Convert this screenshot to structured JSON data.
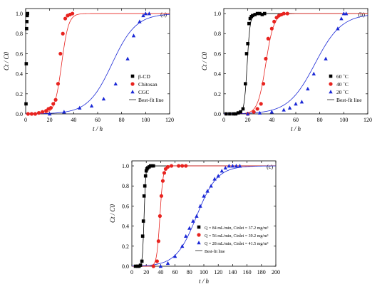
{
  "chart_data": [
    {
      "type": "scatter",
      "panel_label": "(a)",
      "xlabel": "t / h",
      "ylabel": "Ct / C0",
      "xlim": [
        0,
        120
      ],
      "ylim": [
        0,
        1.05
      ],
      "xticks": [
        0,
        20,
        40,
        60,
        80,
        100,
        120
      ],
      "yticks": [
        0.0,
        0.2,
        0.4,
        0.6,
        0.8,
        1.0
      ],
      "legend_position": "bottom-right",
      "series": [
        {
          "name": "β-CD",
          "marker": "square",
          "color": "#000000",
          "x": [
            0.3,
            0.5,
            0.8,
            1.0,
            1.3,
            1.6
          ],
          "y": [
            0.1,
            0.5,
            0.85,
            0.92,
            0.98,
            1.0
          ]
        },
        {
          "name": "Chitosan",
          "marker": "circle",
          "color": "#e8231f",
          "x": [
            2,
            5,
            8,
            11,
            14,
            17,
            19,
            21,
            23,
            25,
            27,
            29,
            31,
            33,
            35,
            37,
            39
          ],
          "y": [
            0.0,
            0.0,
            0.0,
            0.01,
            0.02,
            0.03,
            0.05,
            0.06,
            0.1,
            0.14,
            0.3,
            0.6,
            0.8,
            0.95,
            0.98,
            0.99,
            1.0
          ]
        },
        {
          "name": "CGC",
          "marker": "triangle",
          "color": "#1a28d6",
          "x": [
            20,
            32,
            45,
            55,
            65,
            75,
            85,
            90,
            95,
            98,
            100,
            103
          ],
          "y": [
            0.0,
            0.02,
            0.06,
            0.08,
            0.15,
            0.3,
            0.55,
            0.78,
            0.92,
            0.98,
            1.0,
            1.0
          ]
        }
      ],
      "fit_lines": [
        {
          "color": "#e8231f",
          "model": "thomas",
          "t50": 30,
          "k": 0.35
        },
        {
          "color": "#1a28d6",
          "model": "thomas",
          "t50": 72,
          "k": 0.1
        }
      ],
      "fit_legend": "Best-fit line"
    },
    {
      "type": "scatter",
      "panel_label": "(b)",
      "xlabel": "t / h",
      "ylabel": "Ct / C0",
      "xlim": [
        0,
        120
      ],
      "ylim": [
        0,
        1.05
      ],
      "xticks": [
        0,
        20,
        40,
        60,
        80,
        100,
        120
      ],
      "yticks": [
        0.0,
        0.2,
        0.4,
        0.6,
        0.8,
        1.0
      ],
      "legend_position": "bottom-right",
      "series": [
        {
          "name": "60 ˚C",
          "marker": "square",
          "color": "#000000",
          "x": [
            2,
            5,
            8,
            10,
            12,
            14,
            16,
            18,
            19,
            20,
            21,
            22,
            23,
            24,
            26,
            28,
            30,
            32,
            34
          ],
          "y": [
            0.0,
            0.0,
            0.0,
            0.0,
            0.01,
            0.02,
            0.05,
            0.3,
            0.6,
            0.7,
            0.9,
            0.95,
            0.97,
            0.98,
            0.99,
            1.0,
            1.0,
            0.99,
            1.0
          ]
        },
        {
          "name": "40 ˚C",
          "marker": "circle",
          "color": "#e8231f",
          "x": [
            20,
            25,
            28,
            31,
            33,
            35,
            37,
            40,
            42,
            44,
            46,
            48,
            50,
            53
          ],
          "y": [
            0.0,
            0.02,
            0.05,
            0.1,
            0.3,
            0.55,
            0.75,
            0.85,
            0.92,
            0.96,
            0.98,
            0.99,
            1.0,
            1.0
          ]
        },
        {
          "name": "20 ˚C",
          "marker": "triangle",
          "color": "#1a28d6",
          "x": [
            20,
            30,
            40,
            50,
            55,
            60,
            65,
            70,
            75,
            85,
            95,
            98,
            100,
            102
          ],
          "y": [
            0.0,
            0.01,
            0.02,
            0.04,
            0.06,
            0.1,
            0.12,
            0.25,
            0.4,
            0.55,
            0.85,
            0.95,
            1.0,
            1.0
          ]
        }
      ],
      "fit_lines": [
        {
          "color": "#000000",
          "model": "thomas",
          "t50": 19.5,
          "k": 0.8
        },
        {
          "color": "#e8231f",
          "model": "thomas",
          "t50": 35,
          "k": 0.3
        },
        {
          "color": "#1a28d6",
          "model": "thomas",
          "t50": 76,
          "k": 0.09
        }
      ],
      "fit_legend": "Best-fit line"
    },
    {
      "type": "scatter",
      "panel_label": "(c)",
      "xlabel": "t / h",
      "ylabel": "Ct / C0",
      "xlim": [
        0,
        200
      ],
      "ylim": [
        0,
        1.05
      ],
      "xticks": [
        0,
        20,
        40,
        60,
        80,
        100,
        120,
        140,
        160,
        180,
        200
      ],
      "yticks": [
        0.0,
        0.2,
        0.4,
        0.6,
        0.8,
        1.0
      ],
      "legend_position": "bottom-right",
      "series": [
        {
          "name": "Q = 84 mL/min, Cinlet = 37.2 mg/m³",
          "marker": "square",
          "color": "#000000",
          "x": [
            5,
            8,
            10,
            12,
            14,
            15,
            16,
            17,
            18,
            19,
            20,
            21,
            22,
            24,
            26,
            28,
            30
          ],
          "y": [
            0.0,
            0.0,
            0.0,
            0.01,
            0.05,
            0.3,
            0.45,
            0.7,
            0.8,
            0.9,
            0.95,
            0.97,
            0.98,
            0.99,
            1.0,
            1.0,
            1.0
          ]
        },
        {
          "name": "Q = 56 mL/min, Cinlet = 39.2 mg/m³",
          "marker": "circle",
          "color": "#e8231f",
          "x": [
            30,
            35,
            37,
            39,
            41,
            43,
            45,
            47,
            50,
            55,
            65,
            70,
            75
          ],
          "y": [
            0.0,
            0.05,
            0.25,
            0.5,
            0.7,
            0.85,
            0.93,
            0.97,
            0.99,
            1.0,
            1.0,
            1.0,
            1.0
          ]
        },
        {
          "name": "Q = 28 mL/min, Cinlet = 41.5 mg/m³",
          "marker": "triangle",
          "color": "#1a28d6",
          "x": [
            40,
            50,
            60,
            70,
            75,
            80,
            85,
            90,
            95,
            100,
            105,
            110,
            115,
            120,
            125,
            130,
            135,
            140,
            145,
            150
          ],
          "y": [
            0.0,
            0.03,
            0.1,
            0.2,
            0.3,
            0.38,
            0.45,
            0.5,
            0.6,
            0.7,
            0.75,
            0.8,
            0.87,
            0.9,
            0.95,
            0.98,
            1.0,
            1.0,
            1.0,
            1.0
          ]
        }
      ],
      "fit_lines": [
        {
          "color": "#000000",
          "model": "thomas",
          "t50": 17,
          "k": 0.9
        },
        {
          "color": "#e8231f",
          "model": "thomas",
          "t50": 39,
          "k": 0.45
        },
        {
          "color": "#1a28d6",
          "model": "thomas",
          "t50": 90,
          "k": 0.07
        }
      ],
      "fit_legend": "Best-fit line"
    }
  ]
}
